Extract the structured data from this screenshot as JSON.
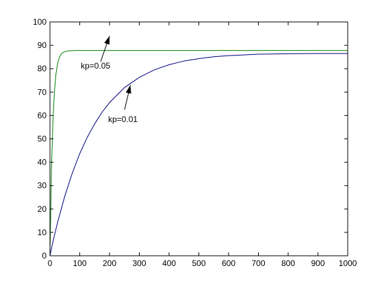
{
  "chart_data": {
    "type": "line",
    "title": "",
    "xlabel": "",
    "ylabel": "",
    "xlim": [
      0,
      1000
    ],
    "ylim": [
      0,
      100
    ],
    "x_ticks": [
      0,
      100,
      200,
      300,
      400,
      500,
      600,
      700,
      800,
      900,
      1000
    ],
    "y_ticks": [
      0,
      10,
      20,
      30,
      40,
      50,
      60,
      70,
      80,
      90,
      100
    ],
    "grid": false,
    "series": [
      {
        "name": "kp=0.05",
        "color": "#007f00",
        "x": [
          0,
          5,
          10,
          15,
          20,
          25,
          30,
          35,
          40,
          45,
          50,
          60,
          70,
          80,
          90,
          100,
          120,
          150,
          200,
          300,
          400,
          500,
          600,
          700,
          800,
          900,
          1000
        ],
        "y": [
          0,
          36.6,
          57.9,
          70.3,
          77.6,
          81.8,
          84.3,
          85.7,
          86.6,
          87.0,
          87.3,
          87.6,
          87.7,
          87.75,
          87.78,
          87.8,
          87.8,
          87.8,
          87.8,
          87.8,
          87.8,
          87.8,
          87.8,
          87.8,
          87.8,
          87.8,
          87.8
        ]
      },
      {
        "name": "kp=0.01",
        "color": "#00007f",
        "x": [
          0,
          10,
          25,
          50,
          75,
          100,
          125,
          150,
          175,
          200,
          250,
          300,
          350,
          400,
          450,
          500,
          550,
          600,
          650,
          700,
          800,
          900,
          1000
        ],
        "y": [
          0,
          6.0,
          14.0,
          25.6,
          35.4,
          43.7,
          50.6,
          56.4,
          61.4,
          65.5,
          71.9,
          76.3,
          79.5,
          81.7,
          83.3,
          84.3,
          85.1,
          85.6,
          85.9,
          86.2,
          86.4,
          86.5,
          86.5
        ]
      }
    ],
    "annotations": [
      {
        "text": "kp=0.05",
        "target": [
          200,
          94
        ]
      },
      {
        "text": "kp=0.01",
        "target": [
          270,
          73
        ]
      }
    ]
  }
}
